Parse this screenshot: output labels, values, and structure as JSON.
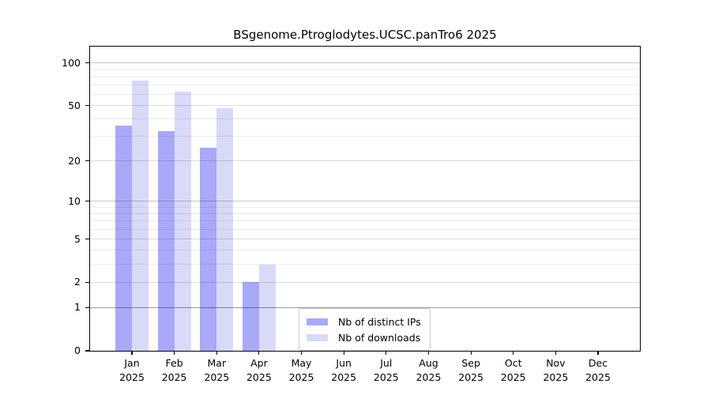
{
  "title": "BSgenome.Ptroglodytes.UCSC.panTro6 2025",
  "colors": {
    "distinct_ips_bar": "#a9a9f8",
    "downloads_bar": "#d9d9f8",
    "axis": "#000000",
    "legend_border": "#cccccc"
  },
  "legend": {
    "items": [
      {
        "label": "Nb of distinct IPs",
        "color": "#a9a9f8"
      },
      {
        "label": "Nb of downloads",
        "color": "#d9d9f8"
      }
    ]
  },
  "chart_data": {
    "type": "bar",
    "title": "BSgenome.Ptroglodytes.UCSC.panTro6 2025",
    "categories": [
      "Jan 2025",
      "Feb 2025",
      "Mar 2025",
      "Apr 2025",
      "May 2025",
      "Jun 2025",
      "Jul 2025",
      "Aug 2025",
      "Sep 2025",
      "Oct 2025",
      "Nov 2025",
      "Dec 2025"
    ],
    "months": [
      "Jan",
      "Feb",
      "Mar",
      "Apr",
      "May",
      "Jun",
      "Jul",
      "Aug",
      "Sep",
      "Oct",
      "Nov",
      "Dec"
    ],
    "year_label": "2025",
    "series": [
      {
        "name": "Nb of distinct IPs",
        "color": "#a9a9f8",
        "values": [
          36,
          33,
          25,
          2,
          0,
          0,
          0,
          0,
          0,
          0,
          0,
          0
        ]
      },
      {
        "name": "Nb of downloads",
        "color": "#d9d9f8",
        "values": [
          75,
          63,
          48,
          3,
          0,
          0,
          0,
          0,
          0,
          0,
          0,
          0
        ]
      }
    ],
    "xlabel": "",
    "ylabel": "",
    "yscale": "log1p",
    "y_ticks": [
      0,
      1,
      2,
      5,
      10,
      20,
      50,
      100
    ],
    "y_minor_gridlines": [
      3,
      4,
      6,
      7,
      8,
      9,
      30,
      40,
      60,
      70,
      80,
      90
    ],
    "ylim": [
      0,
      130
    ],
    "grid": true,
    "legend_position": "inside-bottom-center"
  }
}
